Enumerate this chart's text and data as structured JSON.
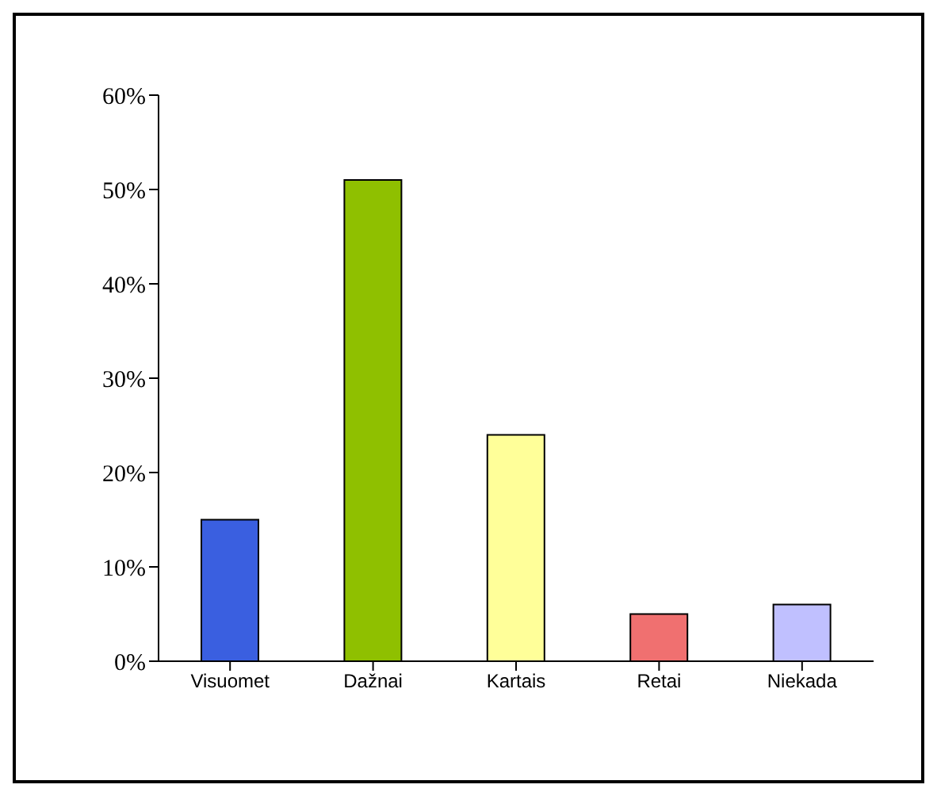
{
  "chart_data": {
    "type": "bar",
    "categories": [
      "Visuomet",
      "Dažnai",
      "Kartais",
      "Retai",
      "Niekada"
    ],
    "values": [
      15,
      51,
      24,
      5,
      6
    ],
    "colors": [
      "#3a5fe0",
      "#8fc000",
      "#ffff99",
      "#f07070",
      "#c0c0ff"
    ],
    "ylim": [
      0,
      60
    ],
    "yticks": [
      {
        "value": 0,
        "label": "0%"
      },
      {
        "value": 10,
        "label": "10%"
      },
      {
        "value": 20,
        "label": "20%"
      },
      {
        "value": 30,
        "label": "30%"
      },
      {
        "value": 40,
        "label": "40%"
      },
      {
        "value": 50,
        "label": "50%"
      },
      {
        "value": 60,
        "label": "60%"
      }
    ],
    "grid": false,
    "legend": false
  }
}
